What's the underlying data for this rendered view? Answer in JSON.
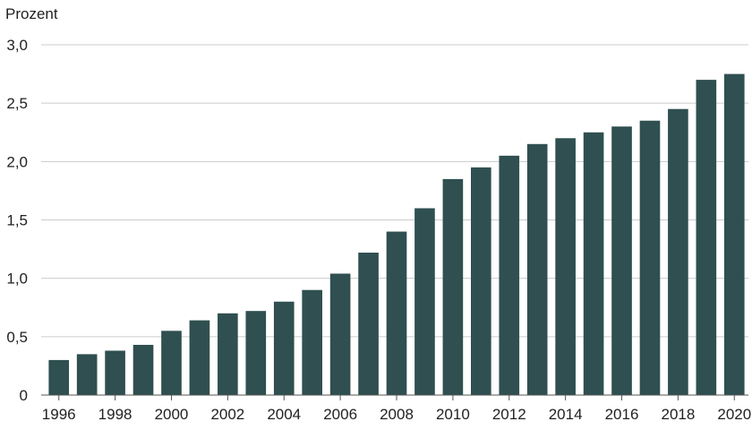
{
  "chart_data": {
    "type": "bar",
    "ylabel": "Prozent",
    "xlabel": "",
    "ylim": [
      0,
      3.0
    ],
    "y_ticks": [
      {
        "value": 0,
        "label": "0"
      },
      {
        "value": 0.5,
        "label": "0,5"
      },
      {
        "value": 1.0,
        "label": "1,0"
      },
      {
        "value": 1.5,
        "label": "1,5"
      },
      {
        "value": 2.0,
        "label": "2,0"
      },
      {
        "value": 2.5,
        "label": "2,5"
      },
      {
        "value": 3.0,
        "label": "3,0"
      }
    ],
    "categories": [
      "1996",
      "1997",
      "1998",
      "1999",
      "2000",
      "2001",
      "2002",
      "2003",
      "2004",
      "2005",
      "2006",
      "2007",
      "2008",
      "2009",
      "2010",
      "2011",
      "2012",
      "2013",
      "2014",
      "2015",
      "2016",
      "2017",
      "2018",
      "2019",
      "2020"
    ],
    "x_tick_labels": [
      "1996",
      "1998",
      "2000",
      "2002",
      "2004",
      "2006",
      "2008",
      "2010",
      "2012",
      "2014",
      "2016",
      "2018",
      "2020"
    ],
    "values": [
      0.3,
      0.35,
      0.38,
      0.43,
      0.55,
      0.64,
      0.7,
      0.72,
      0.8,
      0.9,
      1.04,
      1.22,
      1.4,
      1.6,
      1.85,
      1.95,
      2.05,
      2.15,
      2.2,
      2.25,
      2.3,
      2.35,
      2.45,
      2.7,
      2.75
    ],
    "bar_color": "#2f4f50",
    "grid": true,
    "grid_color": "#cccccc"
  }
}
